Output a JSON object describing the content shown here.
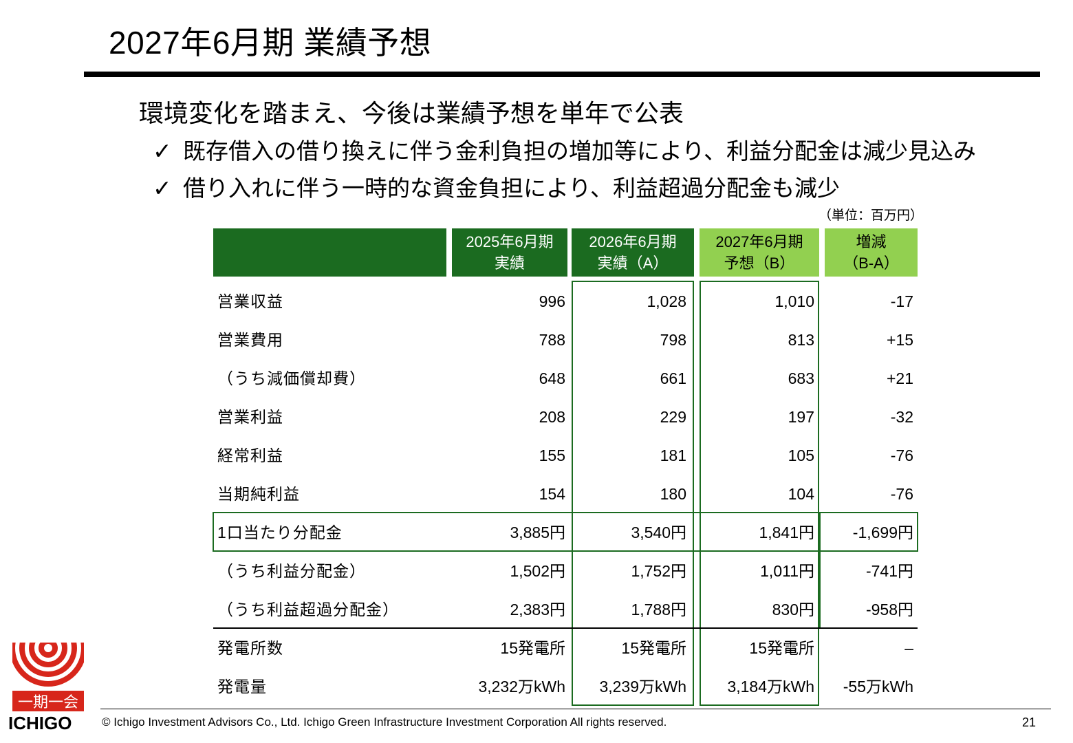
{
  "title": "2027年6月期 業績予想",
  "lead": "環境変化を踏まえ、今後は業績予想を単年で公表",
  "bullets": [
    "既存借入の借り換えに伴う金利負担の増加等により、利益分配金は減少見込み",
    "借り入れに伴う一時的な資金負担により、利益超過分配金も減少"
  ],
  "check_mark": "✓",
  "unit": "（単位：百万円）",
  "table": {
    "headers": [
      {
        "line1": "2025年6月期",
        "line2": "実績"
      },
      {
        "line1": "2026年6月期",
        "line2": "実績（A）"
      },
      {
        "line1": "2027年6月期",
        "line2": "予想（B）"
      },
      {
        "line1": "増減",
        "line2": "（B-A）"
      }
    ],
    "rows": [
      {
        "label": "営業収益",
        "values": [
          "996",
          "1,028",
          "1,010",
          "-17"
        ]
      },
      {
        "label": "営業費用",
        "values": [
          "788",
          "798",
          "813",
          "+15"
        ]
      },
      {
        "label": "（うち減価償却費）",
        "values": [
          "648",
          "661",
          "683",
          "+21"
        ]
      },
      {
        "label": "営業利益",
        "values": [
          "208",
          "229",
          "197",
          "-32"
        ]
      },
      {
        "label": "経常利益",
        "values": [
          "155",
          "181",
          "105",
          "-76"
        ]
      },
      {
        "label": "当期純利益",
        "values": [
          "154",
          "180",
          "104",
          "-76"
        ]
      },
      {
        "label": "1口当たり分配金",
        "values": [
          "3,885円",
          "3,540円",
          "1,841円",
          "-1,699円"
        ]
      },
      {
        "label": "（うち利益分配金）",
        "values": [
          "1,502円",
          "1,752円",
          "1,011円",
          "-741円"
        ]
      },
      {
        "label": "（うち利益超過分配金）",
        "values": [
          "2,383円",
          "1,788円",
          "830円",
          "-958円"
        ]
      },
      {
        "label": "発電所数",
        "values": [
          "15発電所",
          "15発電所",
          "15発電所",
          "–"
        ]
      },
      {
        "label": "発電量",
        "values": [
          "3,232万kWh",
          "3,239万kWh",
          "3,184万kWh",
          "-55万kWh"
        ]
      }
    ]
  },
  "logo": {
    "seal_text": "一期一会",
    "name": "ICHIGO",
    "accent": "#d7261b"
  },
  "footer": {
    "copyright": "© Ichigo Investment Advisors Co., Ltd.  Ichigo Green Infrastructure Investment Corporation  All rights reserved.",
    "page": "21"
  },
  "colors": {
    "dark_green": "#1b6b20",
    "light_green": "#92d050"
  }
}
